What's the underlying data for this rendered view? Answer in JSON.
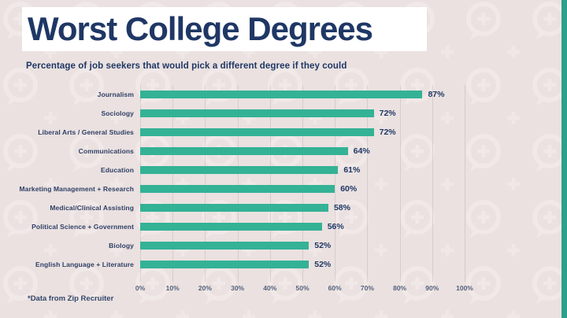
{
  "page": {
    "title": "Worst College Degrees",
    "subtitle": "Percentage of job seekers that would pick a different degree if they could",
    "footnote": "*Data from Zip Recruiter"
  },
  "colors": {
    "background": "#eae1e0",
    "navy": "#1f3765",
    "teal": "#33b295",
    "stripe": "#2aa18a",
    "band": "#ffffff",
    "pattern": "#f6efee"
  },
  "chart_data": {
    "type": "bar",
    "orientation": "horizontal",
    "title": "Worst College Degrees",
    "subtitle": "Percentage of job seekers that would pick a different degree if they could",
    "categories": [
      "Journalism",
      "Sociology",
      "Liberal Arts / General Studies",
      "Communications",
      "Education",
      "Marketing Management + Research",
      "Medical/Clinical Assisting",
      "Political Science + Government",
      "Biology",
      "English Language + Literature"
    ],
    "values": [
      87,
      72,
      72,
      64,
      61,
      60,
      58,
      56,
      52,
      52
    ],
    "value_suffix": "%",
    "x_ticks": [
      "0%",
      "10%",
      "20%",
      "30%",
      "40%",
      "50%",
      "60%",
      "70%",
      "80%",
      "90%",
      "100%"
    ],
    "xlim": [
      0,
      100
    ],
    "grid": true,
    "legend": "none",
    "source": "*Data from Zip Recruiter"
  }
}
